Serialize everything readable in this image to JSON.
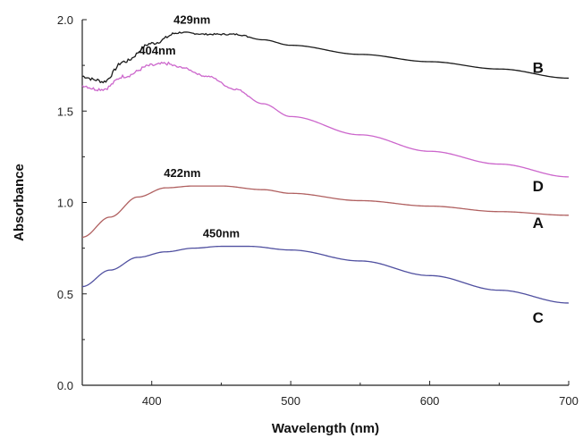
{
  "chart_data": {
    "type": "line",
    "title": "",
    "xlabel": "Wavelength (nm)",
    "ylabel": "Absorbance",
    "xlim": [
      350,
      700
    ],
    "ylim": [
      0.0,
      2.0
    ],
    "x_ticks": [
      400,
      500,
      600,
      700
    ],
    "x_tick_labels": [
      "400",
      "500",
      "600",
      "700"
    ],
    "y_ticks": [
      0.0,
      0.5,
      1.0,
      1.5,
      2.0
    ],
    "y_tick_labels": [
      "0.0",
      "0.5",
      "1.0",
      "1.5",
      "2.0"
    ],
    "grid": false,
    "legend": "none",
    "series": [
      {
        "name": "B",
        "color": "#1a1a1a",
        "noisy": true,
        "peak_label": "429nm",
        "x": [
          350,
          360,
          365,
          380,
          400,
          420,
          440,
          460,
          480,
          500,
          550,
          600,
          650,
          700
        ],
        "y": [
          1.69,
          1.67,
          1.66,
          1.77,
          1.87,
          1.93,
          1.92,
          1.92,
          1.89,
          1.86,
          1.81,
          1.77,
          1.73,
          1.68
        ]
      },
      {
        "name": "D",
        "color": "#cc66cc",
        "noisy": true,
        "peak_label": "404nm",
        "x": [
          350,
          360,
          365,
          380,
          400,
          410,
          420,
          440,
          460,
          480,
          500,
          550,
          600,
          650,
          700
        ],
        "y": [
          1.64,
          1.62,
          1.62,
          1.69,
          1.75,
          1.76,
          1.74,
          1.69,
          1.62,
          1.54,
          1.47,
          1.37,
          1.28,
          1.21,
          1.14
        ]
      },
      {
        "name": "A",
        "color": "#b06060",
        "noisy": false,
        "peak_label": "422nm",
        "x": [
          350,
          370,
          390,
          410,
          430,
          450,
          480,
          500,
          550,
          600,
          650,
          700
        ],
        "y": [
          0.81,
          0.92,
          1.03,
          1.08,
          1.09,
          1.09,
          1.07,
          1.05,
          1.01,
          0.98,
          0.95,
          0.93
        ]
      },
      {
        "name": "C",
        "color": "#5050a0",
        "noisy": false,
        "peak_label": "450nm",
        "x": [
          350,
          370,
          390,
          410,
          430,
          450,
          470,
          500,
          550,
          600,
          650,
          700
        ],
        "y": [
          0.54,
          0.63,
          0.7,
          0.73,
          0.75,
          0.76,
          0.76,
          0.74,
          0.68,
          0.6,
          0.52,
          0.45
        ]
      }
    ]
  }
}
